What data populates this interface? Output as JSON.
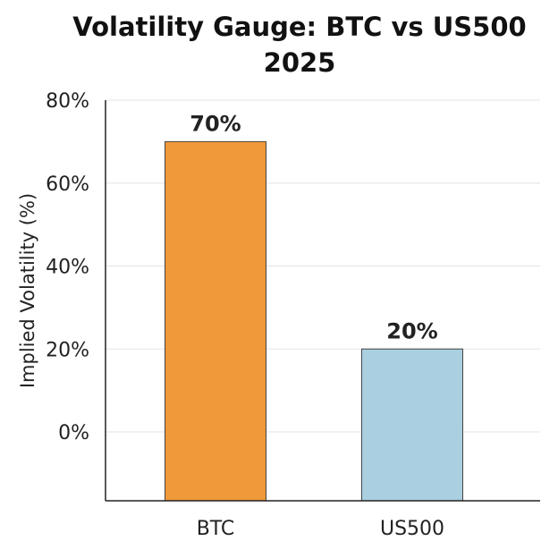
{
  "chart_data": {
    "type": "bar",
    "title_lines": [
      "Volatility Gauge: BTC vs US500",
      "2025"
    ],
    "ylabel": "Implied Volatility (%)",
    "xlabel": "",
    "categories": [
      "BTC",
      "US500"
    ],
    "values": [
      70,
      20
    ],
    "data_labels": [
      "70%",
      "20%"
    ],
    "colors": [
      "#f0993a",
      "#a9cfe1"
    ],
    "yticks": [
      0,
      20,
      40,
      60,
      80
    ],
    "ytick_labels": [
      "0%",
      "20%",
      "40%",
      "60%",
      "80%"
    ],
    "ylim": [
      -17,
      80
    ],
    "grid": true
  }
}
